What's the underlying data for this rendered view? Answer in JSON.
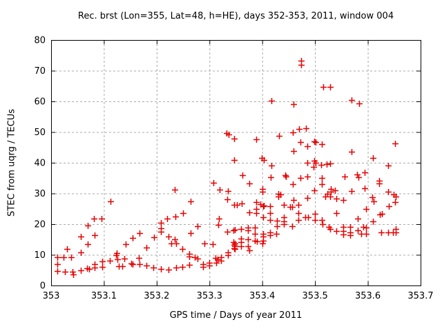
{
  "chart_data": {
    "type": "scatter",
    "title": "Rec. brst (Lon=355, Lat=48, h=HE), days 352-353, 2011, window 004",
    "xlabel": "GPS time / Days of year 2011",
    "ylabel": "STEC from uqrg / TECUs",
    "xlim": [
      353,
      353.7
    ],
    "ylim": [
      0,
      80
    ],
    "xticks": [
      353,
      353.1,
      353.2,
      353.3,
      353.4,
      353.5,
      353.6,
      353.7
    ],
    "xtick_labels": [
      "353",
      "353.1",
      "353.2",
      "353.3",
      "353.4",
      "353.5",
      "353.6",
      "353.7"
    ],
    "yticks": [
      0,
      10,
      20,
      30,
      40,
      50,
      60,
      70,
      80
    ],
    "ytick_labels": [
      "0",
      "10",
      "20",
      "30",
      "40",
      "50",
      "60",
      "70",
      "80"
    ],
    "grid": "dashed",
    "grid_color": "#a8a8a8",
    "border_color": "#000000",
    "legend": "none",
    "marker": {
      "shape": "plus",
      "color": "#e60000",
      "size": 9
    },
    "series": [
      {
        "name": "STEC",
        "points": [
          [
            353.012,
            9.3
          ],
          [
            353.024,
            9.3
          ],
          [
            353.038,
            9.3
          ],
          [
            353.012,
            6.9
          ],
          [
            353.012,
            4.7
          ],
          [
            353.026,
            4.5
          ],
          [
            353.04,
            4.6
          ],
          [
            353.042,
            3.6
          ],
          [
            353.03,
            11.8
          ],
          [
            353.056,
            15.9
          ],
          [
            353.056,
            10.8
          ],
          [
            353.056,
            5.0
          ],
          [
            353.069,
            13.5
          ],
          [
            353.07,
            19.6
          ],
          [
            353.068,
            5.6
          ],
          [
            353.072,
            5.5
          ],
          [
            353.081,
            21.9
          ],
          [
            353.082,
            16.3
          ],
          [
            353.083,
            7.0
          ],
          [
            353.083,
            5.8
          ],
          [
            353.096,
            21.7
          ],
          [
            353.097,
            7.8
          ],
          [
            353.097,
            6.1
          ],
          [
            353.111,
            8.2
          ],
          [
            353.113,
            27.4
          ],
          [
            353.123,
            9.9
          ],
          [
            353.124,
            10.5
          ],
          [
            353.126,
            8.5
          ],
          [
            353.128,
            6.3
          ],
          [
            353.135,
            6.4
          ],
          [
            353.139,
            8.8
          ],
          [
            353.141,
            13.5
          ],
          [
            353.152,
            7.3
          ],
          [
            353.155,
            6.9
          ],
          [
            353.154,
            15.5
          ],
          [
            353.166,
            8.9
          ],
          [
            353.168,
            17.0
          ],
          [
            353.168,
            7.0
          ],
          [
            353.18,
            12.4
          ],
          [
            353.18,
            6.5
          ],
          [
            353.193,
            5.8
          ],
          [
            353.195,
            15.7
          ],
          [
            353.208,
            20.5
          ],
          [
            353.208,
            18.7
          ],
          [
            353.208,
            17.5
          ],
          [
            353.208,
            5.5
          ],
          [
            353.22,
            21.7
          ],
          [
            353.222,
            5.2
          ],
          [
            353.223,
            16.0
          ],
          [
            353.228,
            13.8
          ],
          [
            353.234,
            15.1
          ],
          [
            353.237,
            13.7
          ],
          [
            353.237,
            5.8
          ],
          [
            353.236,
            22.4
          ],
          [
            353.234,
            31.2
          ],
          [
            353.249,
            12.0
          ],
          [
            353.25,
            23.6
          ],
          [
            353.249,
            6.1
          ],
          [
            353.262,
            10.3
          ],
          [
            353.262,
            9.4
          ],
          [
            353.262,
            6.7
          ],
          [
            353.264,
            27.5
          ],
          [
            353.264,
            17.1
          ],
          [
            353.272,
            9.3
          ],
          [
            353.277,
            8.7
          ],
          [
            353.277,
            19.4
          ],
          [
            353.288,
            7.0
          ],
          [
            353.288,
            6.1
          ],
          [
            353.29,
            13.7
          ],
          [
            353.3,
            7.5
          ],
          [
            353.3,
            6.6
          ],
          [
            353.306,
            13.4
          ],
          [
            353.307,
            33.4
          ],
          [
            353.311,
            8.9
          ],
          [
            353.315,
            8.5
          ],
          [
            353.313,
            7.5
          ],
          [
            353.316,
            19.7
          ],
          [
            353.318,
            21.9
          ],
          [
            353.319,
            31.2
          ],
          [
            353.322,
            9.3
          ],
          [
            353.322,
            8.2
          ],
          [
            353.332,
            49.6
          ],
          [
            353.336,
            49.3
          ],
          [
            353.334,
            28.1
          ],
          [
            353.335,
            30.8
          ],
          [
            353.334,
            17.6
          ],
          [
            353.335,
            10.8
          ],
          [
            353.335,
            9.9
          ],
          [
            353.345,
            17.9
          ],
          [
            353.345,
            14.2
          ],
          [
            353.347,
            13.2
          ],
          [
            353.347,
            12.2
          ],
          [
            353.347,
            26.4
          ],
          [
            353.347,
            47.9
          ],
          [
            353.347,
            41.0
          ],
          [
            353.348,
            18.1
          ],
          [
            353.348,
            13.8
          ],
          [
            353.348,
            12.9
          ],
          [
            353.348,
            11.9
          ],
          [
            353.352,
            26.3
          ],
          [
            353.36,
            18.4
          ],
          [
            353.36,
            15.3
          ],
          [
            353.36,
            14.2
          ],
          [
            353.36,
            12.8
          ],
          [
            353.361,
            26.7
          ],
          [
            353.362,
            35.9
          ],
          [
            353.373,
            18.9
          ],
          [
            353.373,
            17.9
          ],
          [
            353.373,
            15.1
          ],
          [
            353.373,
            12.9
          ],
          [
            353.375,
            11.5
          ],
          [
            353.376,
            23.9
          ],
          [
            353.376,
            33.3
          ],
          [
            353.386,
            18.9
          ],
          [
            353.386,
            16.9
          ],
          [
            353.386,
            14.7
          ],
          [
            353.39,
            14.3
          ],
          [
            353.388,
            24.9
          ],
          [
            353.388,
            23.7
          ],
          [
            353.388,
            27.3
          ],
          [
            353.389,
            47.6
          ],
          [
            353.396,
            26.5
          ],
          [
            353.399,
            41.6
          ],
          [
            353.403,
            41.0
          ],
          [
            353.4,
            13.8
          ],
          [
            353.401,
            31.4
          ],
          [
            353.401,
            30.5
          ],
          [
            353.402,
            25.8
          ],
          [
            353.402,
            22.2
          ],
          [
            353.402,
            16.9
          ],
          [
            353.402,
            15.9
          ],
          [
            353.402,
            14.7
          ],
          [
            353.403,
            26.1
          ],
          [
            353.415,
            25.9
          ],
          [
            353.415,
            23.5
          ],
          [
            353.415,
            21.3
          ],
          [
            353.415,
            17.4
          ],
          [
            353.415,
            16.4
          ],
          [
            353.416,
            35.3
          ],
          [
            353.418,
            39.0
          ],
          [
            353.418,
            60.2
          ],
          [
            353.427,
            16.9
          ],
          [
            353.428,
            21.1
          ],
          [
            353.428,
            19.4
          ],
          [
            353.43,
            30.0
          ],
          [
            353.434,
            29.6
          ],
          [
            353.431,
            29.1
          ],
          [
            353.432,
            48.8
          ],
          [
            353.441,
            26.2
          ],
          [
            353.441,
            22.3
          ],
          [
            353.441,
            21.0
          ],
          [
            353.441,
            19.9
          ],
          [
            353.443,
            35.9
          ],
          [
            353.445,
            35.4
          ],
          [
            353.453,
            25.6
          ],
          [
            353.457,
            25.6
          ],
          [
            353.457,
            19.4
          ],
          [
            353.458,
            49.8
          ],
          [
            353.459,
            43.8
          ],
          [
            353.458,
            33.0
          ],
          [
            353.459,
            27.9
          ],
          [
            353.459,
            59.0
          ],
          [
            353.469,
            26.3
          ],
          [
            353.469,
            23.5
          ],
          [
            353.469,
            21.3
          ],
          [
            353.47,
            51.0
          ],
          [
            353.472,
            46.7
          ],
          [
            353.473,
            73.2
          ],
          [
            353.473,
            72.0
          ],
          [
            353.482,
            22.2
          ],
          [
            353.487,
            22.2
          ],
          [
            353.483,
            51.2
          ],
          [
            353.485,
            45.5
          ],
          [
            353.486,
            39.9
          ],
          [
            353.485,
            35.4
          ],
          [
            353.472,
            35.0
          ],
          [
            353.486,
            28.5
          ],
          [
            353.497,
            38.6
          ],
          [
            353.498,
            47.0
          ],
          [
            353.501,
            46.7
          ],
          [
            353.499,
            40.7
          ],
          [
            353.501,
            39.9
          ],
          [
            353.498,
            30.9
          ],
          [
            353.5,
            23.4
          ],
          [
            353.5,
            21.3
          ],
          [
            353.511,
            39.3
          ],
          [
            353.513,
            46.0
          ],
          [
            353.513,
            35.1
          ],
          [
            353.513,
            33.0
          ],
          [
            353.513,
            21.4
          ],
          [
            353.514,
            19.9
          ],
          [
            353.515,
            64.8
          ],
          [
            353.519,
            29.1
          ],
          [
            353.522,
            39.6
          ],
          [
            353.524,
            29.9
          ],
          [
            353.526,
            19.0
          ],
          [
            353.528,
            64.8
          ],
          [
            353.529,
            39.8
          ],
          [
            353.528,
            29.1
          ],
          [
            353.529,
            18.4
          ],
          [
            353.53,
            31.4
          ],
          [
            353.53,
            30.5
          ],
          [
            353.538,
            31.1
          ],
          [
            353.54,
            17.7
          ],
          [
            353.54,
            28.4
          ],
          [
            353.541,
            23.5
          ],
          [
            353.554,
            27.9
          ],
          [
            353.554,
            19.0
          ],
          [
            353.554,
            17.7
          ],
          [
            353.554,
            16.6
          ],
          [
            353.556,
            35.6
          ],
          [
            353.567,
            19.0
          ],
          [
            353.567,
            17.4
          ],
          [
            353.567,
            16.5
          ],
          [
            353.569,
            43.7
          ],
          [
            353.569,
            30.8
          ],
          [
            353.569,
            60.4
          ],
          [
            353.58,
            36.2
          ],
          [
            353.582,
            35.3
          ],
          [
            353.581,
            21.9
          ],
          [
            353.581,
            17.9
          ],
          [
            353.583,
            59.3
          ],
          [
            353.587,
            16.9
          ],
          [
            353.592,
            19.1
          ],
          [
            353.597,
            18.9
          ],
          [
            353.594,
            36.9
          ],
          [
            353.594,
            31.7
          ],
          [
            353.596,
            24.9
          ],
          [
            353.596,
            16.8
          ],
          [
            353.608,
            28.8
          ],
          [
            353.61,
            41.5
          ],
          [
            353.61,
            20.8
          ],
          [
            353.611,
            27.5
          ],
          [
            353.622,
            34.2
          ],
          [
            353.622,
            33.3
          ],
          [
            353.623,
            23.1
          ],
          [
            353.627,
            23.3
          ],
          [
            353.625,
            17.2
          ],
          [
            353.638,
            39.2
          ],
          [
            353.638,
            30.6
          ],
          [
            353.638,
            17.2
          ],
          [
            353.64,
            25.8
          ],
          [
            353.648,
            17.4
          ],
          [
            353.649,
            29.6
          ],
          [
            353.652,
            46.4
          ],
          [
            353.653,
            28.9
          ],
          [
            353.653,
            18.5
          ],
          [
            353.653,
            17.4
          ],
          [
            353.651,
            27.2
          ]
        ]
      }
    ]
  }
}
